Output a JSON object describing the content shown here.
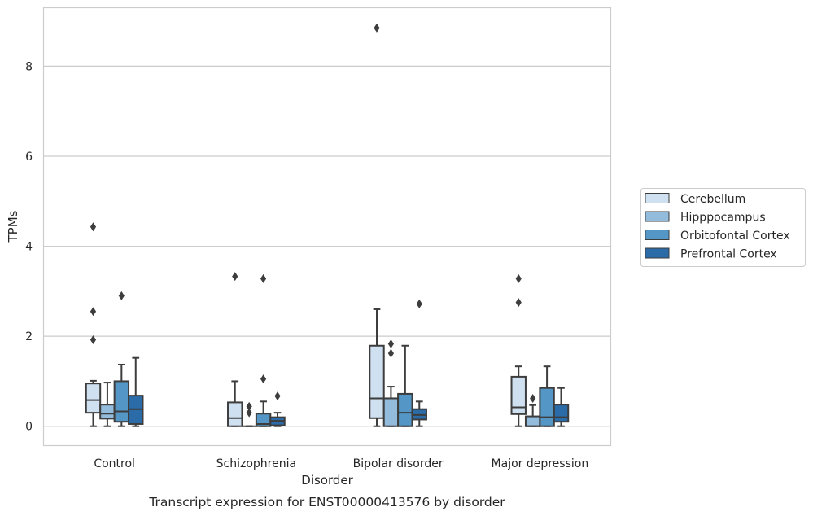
{
  "caption": "Transcript expression for ENST00000413576 by disorder",
  "chart_data": {
    "type": "box",
    "xlabel": "Disorder",
    "ylabel": "TPMs",
    "ylim": [
      -0.43,
      9.3
    ],
    "yticks": [
      0,
      2,
      4,
      6,
      8
    ],
    "grid": "y",
    "legend_position": "right",
    "categories": [
      "Control",
      "Schizophrenia",
      "Bipolar disorder",
      "Major depression"
    ],
    "series": [
      {
        "name": "Cerebellum",
        "color": "#cfe0f0",
        "boxes": [
          {
            "whislo": 0.0,
            "q1": 0.3,
            "med": 0.58,
            "q3": 0.95,
            "whishi": 1.01,
            "fliers": [
              4.43,
              2.55,
              1.92
            ]
          },
          {
            "whislo": 0.0,
            "q1": 0.0,
            "med": 0.18,
            "q3": 0.53,
            "whishi": 1.0,
            "fliers": [
              3.33
            ]
          },
          {
            "whislo": 0.0,
            "q1": 0.18,
            "med": 0.62,
            "q3": 1.79,
            "whishi": 2.6,
            "fliers": [
              8.85
            ]
          },
          {
            "whislo": 0.0,
            "q1": 0.27,
            "med": 0.42,
            "q3": 1.1,
            "whishi": 1.33,
            "fliers": [
              3.28,
              2.75
            ]
          }
        ]
      },
      {
        "name": "Hipppocampus",
        "color": "#93bcdc",
        "boxes": [
          {
            "whislo": 0.0,
            "q1": 0.17,
            "med": 0.28,
            "q3": 0.48,
            "whishi": 0.97,
            "fliers": []
          },
          {
            "whislo": 0.0,
            "q1": 0.0,
            "med": 0.0,
            "q3": 0.0,
            "whishi": 0.0,
            "fliers": [
              0.44,
              0.3
            ]
          },
          {
            "whislo": 0.0,
            "q1": 0.0,
            "med": 0.62,
            "q3": 0.62,
            "whishi": 0.88,
            "fliers": [
              1.83,
              1.62
            ]
          },
          {
            "whislo": 0.0,
            "q1": 0.0,
            "med": 0.0,
            "q3": 0.22,
            "whishi": 0.47,
            "fliers": [
              0.62
            ]
          }
        ]
      },
      {
        "name": "Orbitofontal Cortex",
        "color": "#5497c6",
        "boxes": [
          {
            "whislo": 0.0,
            "q1": 0.1,
            "med": 0.33,
            "q3": 1.0,
            "whishi": 1.37,
            "fliers": [
              2.9
            ]
          },
          {
            "whislo": 0.0,
            "q1": 0.0,
            "med": 0.05,
            "q3": 0.28,
            "whishi": 0.55,
            "fliers": [
              3.28,
              1.05
            ]
          },
          {
            "whislo": 0.0,
            "q1": 0.0,
            "med": 0.3,
            "q3": 0.72,
            "whishi": 1.79,
            "fliers": []
          },
          {
            "whislo": 0.0,
            "q1": 0.0,
            "med": 0.2,
            "q3": 0.85,
            "whishi": 1.33,
            "fliers": []
          }
        ]
      },
      {
        "name": "Prefrontal Cortex",
        "color": "#2a6ba8",
        "boxes": [
          {
            "whislo": 0.0,
            "q1": 0.05,
            "med": 0.38,
            "q3": 0.68,
            "whishi": 1.52,
            "fliers": []
          },
          {
            "whislo": 0.0,
            "q1": 0.02,
            "med": 0.12,
            "q3": 0.2,
            "whishi": 0.3,
            "fliers": [
              0.67
            ]
          },
          {
            "whislo": 0.0,
            "q1": 0.15,
            "med": 0.25,
            "q3": 0.38,
            "whishi": 0.55,
            "fliers": [
              2.72
            ]
          },
          {
            "whislo": 0.0,
            "q1": 0.1,
            "med": 0.2,
            "q3": 0.48,
            "whishi": 0.85,
            "fliers": []
          }
        ]
      }
    ]
  }
}
